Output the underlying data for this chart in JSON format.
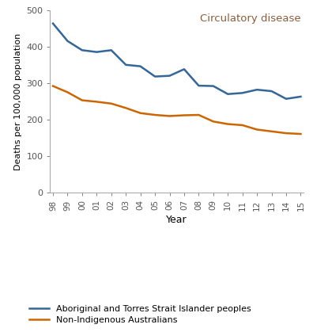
{
  "title": "Circulatory disease",
  "title_color": "#8B5E3C",
  "xlabel": "Year",
  "ylabel": "Deaths per 100,000 population",
  "ylim": [
    0,
    500
  ],
  "yticks": [
    0,
    100,
    200,
    300,
    400,
    500
  ],
  "years": [
    "98",
    "99",
    "00",
    "01",
    "02",
    "03",
    "04",
    "05",
    "06",
    "07",
    "08",
    "09",
    "10",
    "11",
    "12",
    "13",
    "14",
    "15"
  ],
  "indigenous": [
    463,
    415,
    390,
    385,
    390,
    350,
    346,
    318,
    320,
    338,
    293,
    292,
    270,
    273,
    282,
    278,
    257,
    263
  ],
  "non_indigenous": [
    292,
    275,
    253,
    249,
    244,
    232,
    218,
    213,
    210,
    212,
    213,
    195,
    188,
    185,
    173,
    168,
    163,
    161
  ],
  "indigenous_color": "#336699",
  "non_indigenous_color": "#CC6600",
  "indigenous_label": "Aboriginal and Torres Strait Islander peoples",
  "non_indigenous_label": "Non-Indigenous Australians",
  "line_width": 1.8,
  "background_color": "#ffffff",
  "figsize": [
    3.96,
    4.19
  ],
  "dpi": 100
}
